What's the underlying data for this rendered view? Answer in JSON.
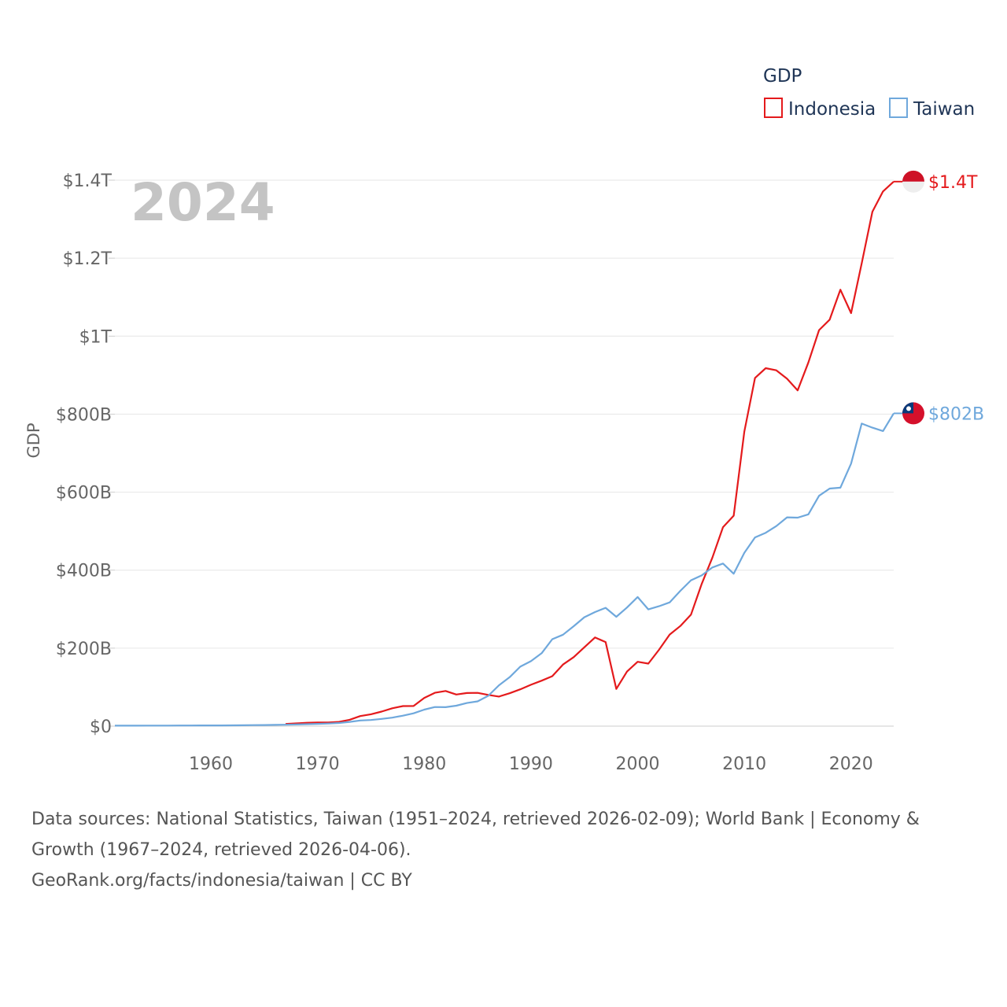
{
  "chart_data": {
    "type": "line",
    "title": "GDP",
    "ylabel": "GDP",
    "xlabel": "",
    "year_label": "2024",
    "xlim": [
      1951,
      2024
    ],
    "ylim": [
      0,
      1400000000000
    ],
    "x_ticks": [
      1960,
      1970,
      1980,
      1990,
      2000,
      2010,
      2020
    ],
    "x_tick_labels": [
      "1960",
      "1970",
      "1980",
      "1990",
      "2000",
      "2010",
      "2020"
    ],
    "y_ticks": [
      0,
      200000000000,
      400000000000,
      600000000000,
      800000000000,
      1000000000000,
      1200000000000,
      1400000000000
    ],
    "y_tick_labels": [
      "$0",
      "$200B",
      "$400B",
      "$600B",
      "$800B",
      "$1T",
      "$1.2T",
      "$1.4T"
    ],
    "legend_position": "top-right",
    "series": [
      {
        "name": "Indonesia",
        "color": "#e41a1c",
        "end_label": "$1.4T",
        "flag_icon": "indonesia-flag-icon",
        "years": [
          1967,
          1968,
          1969,
          1970,
          1971,
          1972,
          1973,
          1974,
          1975,
          1976,
          1977,
          1978,
          1979,
          1980,
          1981,
          1982,
          1983,
          1984,
          1985,
          1986,
          1987,
          1988,
          1989,
          1990,
          1991,
          1992,
          1993,
          1994,
          1995,
          1996,
          1997,
          1998,
          1999,
          2000,
          2001,
          2002,
          2003,
          2004,
          2005,
          2006,
          2007,
          2008,
          2009,
          2010,
          2011,
          2012,
          2013,
          2014,
          2015,
          2016,
          2017,
          2018,
          2019,
          2020,
          2021,
          2022,
          2023,
          2024
        ],
        "values": [
          5.7,
          7.1,
          8.7,
          9.2,
          9.5,
          10.9,
          16.3,
          25.8,
          30.5,
          37.3,
          45.8,
          51.5,
          51.7,
          72.5,
          85.5,
          90.2,
          81.1,
          84.9,
          85.3,
          80.0,
          75.9,
          84.3,
          94.5,
          106.1,
          116.6,
          128.0,
          158.0,
          176.9,
          202.1,
          227.4,
          215.7,
          95.4,
          140.0,
          165.0,
          160.4,
          195.7,
          234.8,
          256.8,
          285.9,
          364.6,
          432.2,
          510.2,
          539.6,
          755.1,
          892.9,
          917.9,
          912.5,
          890.8,
          860.9,
          932.3,
          1015.6,
          1042.3,
          1119.1,
          1059.1,
          1186.5,
          1319.1,
          1371.2,
          1396.3
        ],
        "value_unit": "billion USD"
      },
      {
        "name": "Taiwan",
        "color": "#6fa8dc",
        "end_label": "$802B",
        "flag_icon": "taiwan-flag-icon",
        "years": [
          1951,
          1952,
          1953,
          1954,
          1955,
          1956,
          1957,
          1958,
          1959,
          1960,
          1961,
          1962,
          1963,
          1964,
          1965,
          1966,
          1967,
          1968,
          1969,
          1970,
          1971,
          1972,
          1973,
          1974,
          1975,
          1976,
          1977,
          1978,
          1979,
          1980,
          1981,
          1982,
          1983,
          1984,
          1985,
          1986,
          1987,
          1988,
          1989,
          1990,
          1991,
          1992,
          1993,
          1994,
          1995,
          1996,
          1997,
          1998,
          1999,
          2000,
          2001,
          2002,
          2003,
          2004,
          2005,
          2006,
          2007,
          2008,
          2009,
          2010,
          2011,
          2012,
          2013,
          2014,
          2015,
          2016,
          2017,
          2018,
          2019,
          2020,
          2021,
          2022,
          2023,
          2024
        ],
        "values": [
          1.2,
          1.3,
          1.3,
          1.4,
          1.5,
          1.5,
          1.6,
          1.7,
          1.8,
          1.8,
          1.9,
          2.0,
          2.2,
          2.6,
          2.9,
          3.2,
          3.7,
          4.3,
          5.0,
          5.8,
          6.7,
          8.0,
          10.9,
          14.5,
          15.7,
          18.6,
          21.7,
          26.8,
          32.9,
          42.3,
          49.0,
          48.6,
          52.4,
          59.4,
          63.6,
          77.9,
          104.6,
          125.5,
          152.6,
          166.6,
          187.1,
          222.9,
          234.5,
          256.2,
          279.1,
          292.5,
          303.3,
          280.5,
          304.2,
          331.0,
          299.3,
          307.4,
          317.4,
          346.9,
          374.1,
          386.5,
          406.9,
          417.0,
          390.8,
          444.3,
          483.9,
          495.8,
          512.9,
          535.3,
          534.5,
          543.1,
          590.7,
          609.2,
          611.4,
          673.2,
          775.8,
          765.4,
          756.6,
          802.0
        ],
        "value_unit": "billion USD"
      }
    ]
  },
  "sources": {
    "line1": "Data sources: National Statistics, Taiwan (1951–2024, retrieved 2026-02-09); World Bank | Economy &",
    "line2": "Growth (1967–2024, retrieved 2026-04-06).",
    "line3": "GeoRank.org/facts/indonesia/taiwan | CC BY"
  }
}
